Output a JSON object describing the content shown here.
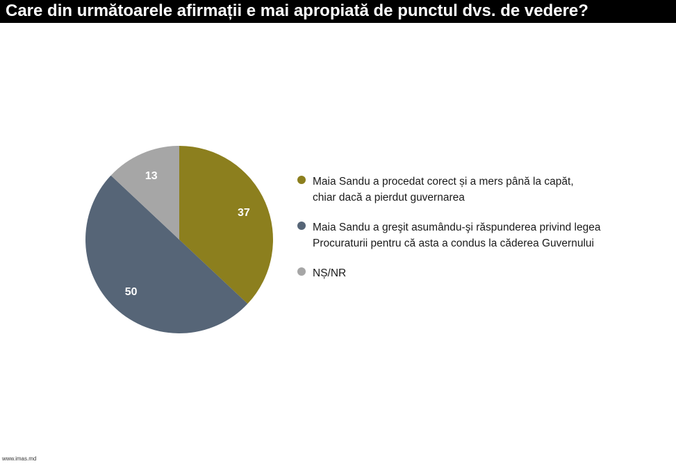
{
  "title": "Care din următoarele afirmații e mai apropiată de punctul dvs. de vedere?",
  "footer": "www.imas.md",
  "chart_data": {
    "type": "pie",
    "title": "Care din următoarele afirmații e mai apropiată de punctul dvs. de vedere?",
    "slices": [
      {
        "label_lines": [
          "Maia Sandu a procedat corect și a mers până la capăt,",
          "chiar dacă a pierdut guvernarea"
        ],
        "value": 37,
        "color": "#8c7f1e"
      },
      {
        "label_lines": [
          "Maia Sandu a greşit asumându-şi răspunderea privind legea",
          "Procuraturii pentru că asta a condus la căderea Guvernului"
        ],
        "value": 50,
        "color": "#566577"
      },
      {
        "label_lines": [
          "NȘ/NR"
        ],
        "value": 13,
        "color": "#a6a6a6"
      }
    ],
    "legend_position": "right"
  }
}
